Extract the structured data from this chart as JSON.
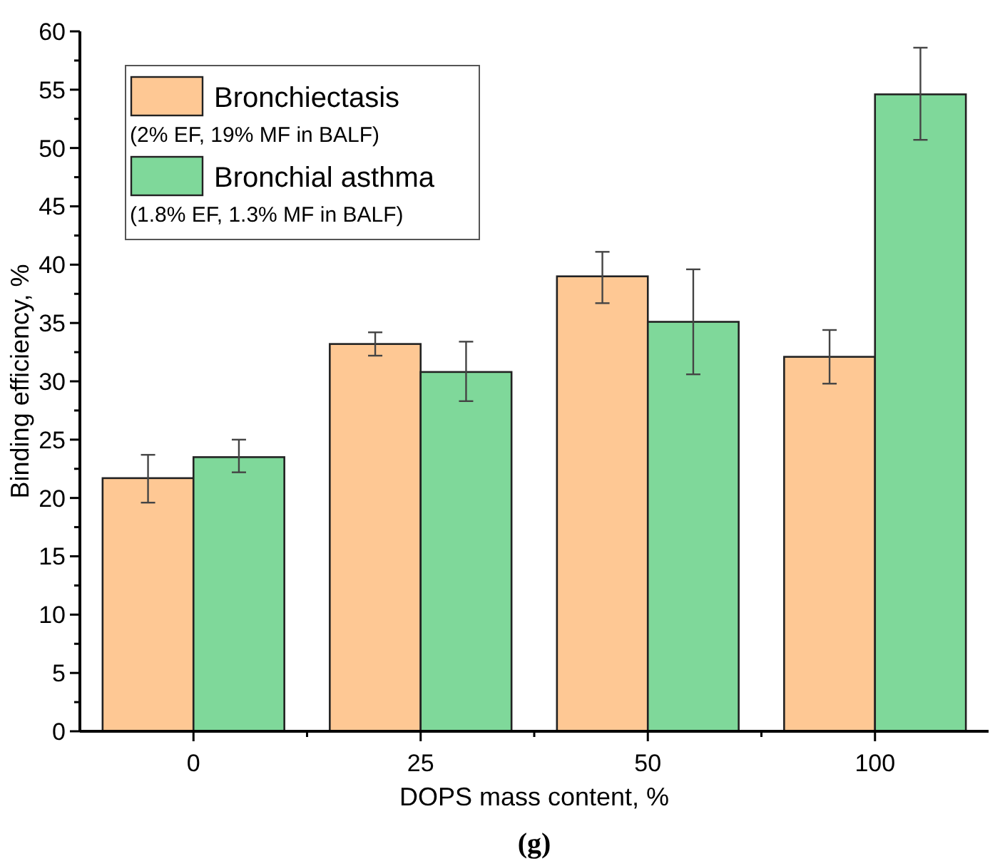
{
  "chart_data": {
    "type": "bar",
    "xlabel": "DOPS mass content, %",
    "ylabel": "Binding efficiency, %",
    "categories": [
      "0",
      "25",
      "50",
      "100"
    ],
    "series": [
      {
        "name": "Bronchiectasis\n(2% EF, 19% MF in BALF)",
        "color": "#fec894",
        "values": [
          21.7,
          33.2,
          39.0,
          32.1
        ],
        "errors": [
          [
            19.6,
            23.7
          ],
          [
            32.2,
            34.2
          ],
          [
            36.7,
            41.1
          ],
          [
            29.8,
            34.4
          ]
        ]
      },
      {
        "name": "Bronchial asthma\n(1.8% EF, 1.3% MF in BALF)",
        "color": "#7fd89a",
        "values": [
          23.5,
          30.8,
          35.1,
          54.6
        ],
        "errors": [
          [
            22.2,
            25.0
          ],
          [
            28.3,
            33.4
          ],
          [
            30.6,
            39.6
          ],
          [
            50.7,
            58.6
          ]
        ]
      }
    ],
    "ylim": [
      0,
      60
    ],
    "yticks": [
      0,
      {
        "value": 2.5,
        "label": null
      },
      5,
      {
        "value": 7.5,
        "label": null
      },
      10,
      {
        "value": 12.5,
        "label": null
      },
      15,
      {
        "value": 17.5,
        "label": null
      },
      20,
      {
        "value": 22.5,
        "label": null
      },
      25,
      {
        "value": 27.5,
        "label": null
      },
      30,
      {
        "value": 32.5,
        "label": null
      },
      35,
      {
        "value": 37.5,
        "label": null
      },
      40,
      {
        "value": 42.5,
        "label": null
      },
      45,
      {
        "value": 47.5,
        "label": null
      },
      50,
      {
        "value": 52.5,
        "label": null
      },
      55,
      {
        "value": 57.5,
        "label": null
      },
      60
    ],
    "grid": false,
    "legend": "top left",
    "annotations": [
      "(g)"
    ]
  }
}
